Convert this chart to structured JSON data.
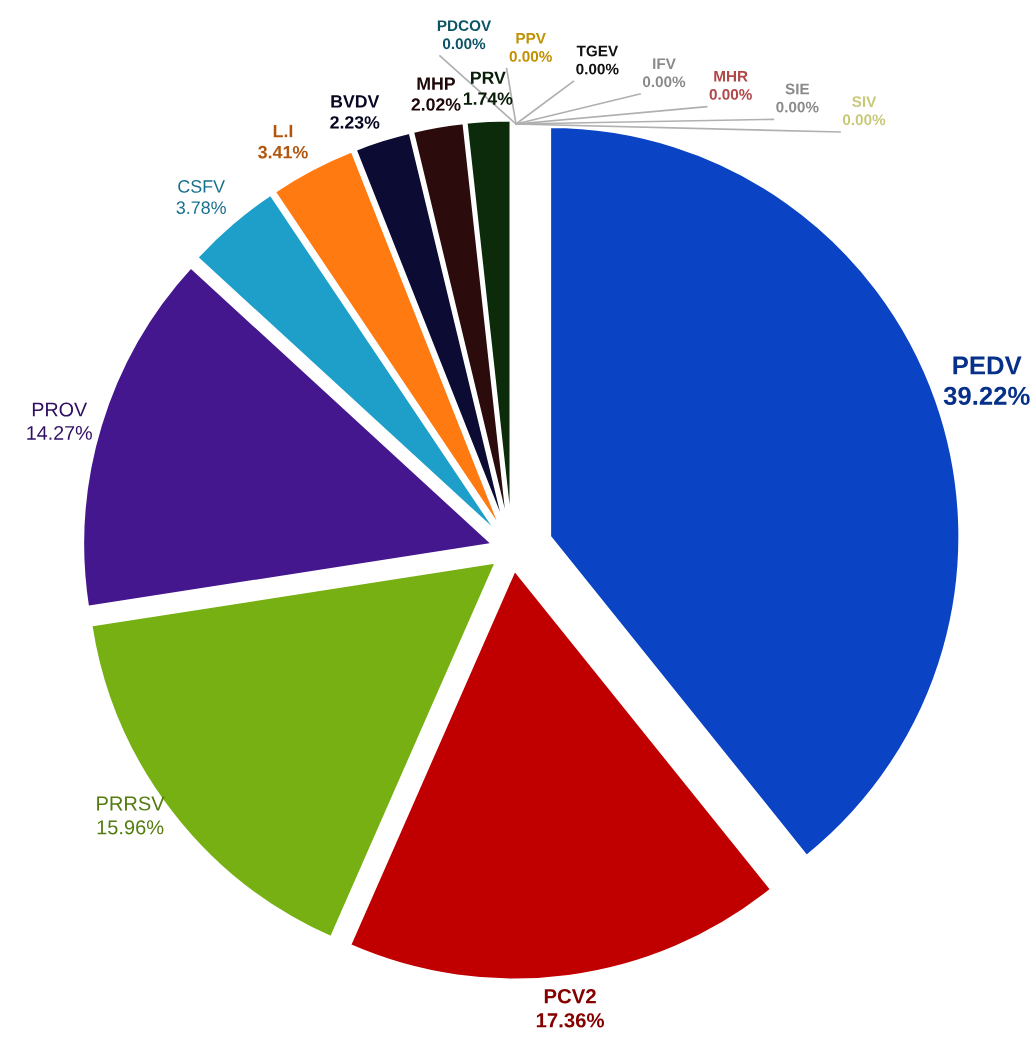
{
  "chart_data": {
    "type": "pie",
    "categories": [
      "PEDV",
      "PCV2",
      "PRRSV",
      "PROV",
      "CSFV",
      "L.I",
      "BVDV",
      "MHP",
      "PRV",
      "PDCOV",
      "PPV",
      "TGEV",
      "IFV",
      "MHR",
      "SIE",
      "SIV"
    ],
    "values": [
      39.22,
      17.36,
      15.96,
      14.27,
      3.78,
      3.41,
      2.23,
      2.02,
      1.74,
      0,
      0,
      0,
      0,
      0,
      0,
      0
    ],
    "value_labels": [
      "39.22%",
      "17.36%",
      "15.96%",
      "14.27%",
      "3.78%",
      "3.41%",
      "2.23%",
      "2.02%",
      "1.74%",
      "0.00%",
      "0.00%",
      "0.00%",
      "0.00%",
      "0.00%",
      "0.00%",
      "0.00%"
    ],
    "colors": [
      "#0a44c4",
      "#c00000",
      "#76b012",
      "#45178f",
      "#1e9fca",
      "#ff7b12",
      "#0b0b33",
      "#2b0b0b",
      "#0b2b0b",
      "#0d5566",
      "#c09000",
      "#111111",
      "#8a8a8a",
      "#b04848",
      "#8a8a8a",
      "#c8c87a"
    ]
  }
}
